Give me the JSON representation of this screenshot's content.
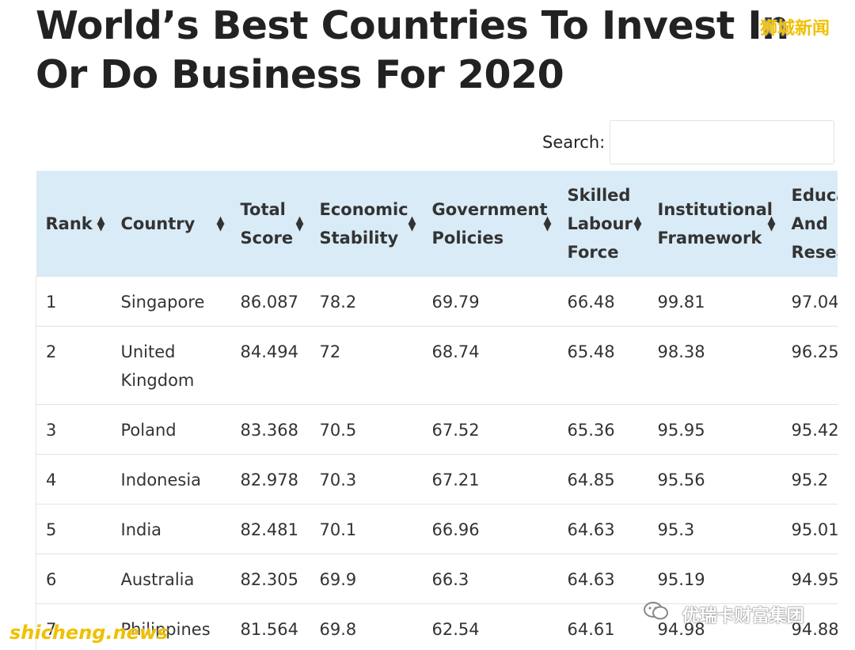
{
  "title": {
    "line1": "World’s Best Countries To Invest In",
    "line2": "Or Do Business For 2020"
  },
  "search": {
    "label": "Search:",
    "value": "",
    "placeholder": ""
  },
  "table": {
    "columns": [
      "Rank",
      "Country",
      "Total Score",
      "Economic Stability",
      "Government Policies",
      "Skilled Labour Force",
      "Institutional Framework",
      "Education And Research"
    ],
    "rows": [
      [
        "1",
        "Singapore",
        "86.087",
        "78.2",
        "69.79",
        "66.48",
        "99.81",
        "97.04"
      ],
      [
        "2",
        "United Kingdom",
        "84.494",
        "72",
        "68.74",
        "65.48",
        "98.38",
        "96.25"
      ],
      [
        "3",
        "Poland",
        "83.368",
        "70.5",
        "67.52",
        "65.36",
        "95.95",
        "95.42"
      ],
      [
        "4",
        "Indonesia",
        "82.978",
        "70.3",
        "67.21",
        "64.85",
        "95.56",
        "95.2"
      ],
      [
        "5",
        "India",
        "82.481",
        "70.1",
        "66.96",
        "64.63",
        "95.3",
        "95.01"
      ],
      [
        "6",
        "Australia",
        "82.305",
        "69.9",
        "66.3",
        "64.63",
        "95.19",
        "94.95"
      ],
      [
        "7",
        "Philippines",
        "81.564",
        "69.8",
        "62.54",
        "64.61",
        "94.98",
        "94.88"
      ]
    ]
  },
  "watermarks": {
    "top_right": "狮城新闻",
    "bottom_left": "shicheng.news",
    "bottom_right": "优瑞卡财富集团",
    "bottom_right_icon": "wechat-icon"
  },
  "colors": {
    "header_bg": "#d9ebf7",
    "watermark": "#f0c000"
  },
  "icons": {
    "sort": "sort-icon"
  }
}
